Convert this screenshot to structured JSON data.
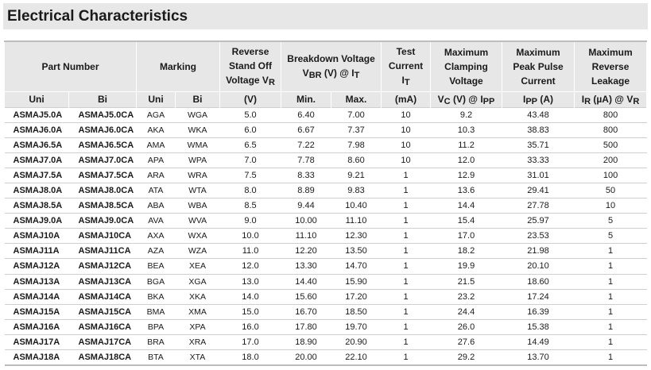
{
  "title": "Electrical Characteristics",
  "headers": {
    "part_number": "Part Number",
    "marking": "Marking",
    "reverse_standoff": [
      "Reverse",
      "Stand Off",
      "Voltage V"
    ],
    "reverse_standoff_sub": "R",
    "breakdown": [
      "Breakdown Voltage",
      "V",
      "BR",
      " (V) @ I",
      "T"
    ],
    "test_current": [
      "Test",
      "Current",
      "I"
    ],
    "test_current_sub": "T",
    "max_clamping": [
      "Maximum",
      "Clamping",
      "Voltage"
    ],
    "max_peak": [
      "Maximum",
      "Peak Pulse",
      "Current"
    ],
    "max_leakage": [
      "Maximum",
      "Reverse",
      "Leakage"
    ],
    "sub": {
      "uni": "Uni",
      "bi": "Bi",
      "marking_uni": "Uni",
      "marking_bi": "Bi",
      "vr_unit": "(V)",
      "min": "Min.",
      "max": "Max.",
      "it_unit": "(mA)",
      "vc": "V",
      "vc_sub": "C",
      "vc_rest": " (V) @ I",
      "vc_sub2": "PP",
      "ipp": "I",
      "ipp_sub": "PP",
      "ipp_rest": " (A)",
      "ir": "I",
      "ir_sub": "R",
      "ir_rest": " (µA) @ V",
      "ir_sub2": "R"
    }
  },
  "rows": [
    {
      "uni": "ASMAJ5.0A",
      "bi": "ASMAJ5.0CA",
      "mu": "AGA",
      "mb": "WGA",
      "vr": "5.0",
      "min": "6.40",
      "max": "7.00",
      "it": "10",
      "vc": "9.2",
      "ipp": "43.48",
      "ir": "800"
    },
    {
      "uni": "ASMAJ6.0A",
      "bi": "ASMAJ6.0CA",
      "mu": "AKA",
      "mb": "WKA",
      "vr": "6.0",
      "min": "6.67",
      "max": "7.37",
      "it": "10",
      "vc": "10.3",
      "ipp": "38.83",
      "ir": "800"
    },
    {
      "uni": "ASMAJ6.5A",
      "bi": "ASMAJ6.5CA",
      "mu": "AMA",
      "mb": "WMA",
      "vr": "6.5",
      "min": "7.22",
      "max": "7.98",
      "it": "10",
      "vc": "11.2",
      "ipp": "35.71",
      "ir": "500"
    },
    {
      "uni": "ASMAJ7.0A",
      "bi": "ASMAJ7.0CA",
      "mu": "APA",
      "mb": "WPA",
      "vr": "7.0",
      "min": "7.78",
      "max": "8.60",
      "it": "10",
      "vc": "12.0",
      "ipp": "33.33",
      "ir": "200"
    },
    {
      "uni": "ASMAJ7.5A",
      "bi": "ASMAJ7.5CA",
      "mu": "ARA",
      "mb": "WRA",
      "vr": "7.5",
      "min": "8.33",
      "max": "9.21",
      "it": "1",
      "vc": "12.9",
      "ipp": "31.01",
      "ir": "100"
    },
    {
      "uni": "ASMAJ8.0A",
      "bi": "ASMAJ8.0CA",
      "mu": "ATA",
      "mb": "WTA",
      "vr": "8.0",
      "min": "8.89",
      "max": "9.83",
      "it": "1",
      "vc": "13.6",
      "ipp": "29.41",
      "ir": "50"
    },
    {
      "uni": "ASMAJ8.5A",
      "bi": "ASMAJ8.5CA",
      "mu": "ABA",
      "mb": "WBA",
      "vr": "8.5",
      "min": "9.44",
      "max": "10.40",
      "it": "1",
      "vc": "14.4",
      "ipp": "27.78",
      "ir": "10"
    },
    {
      "uni": "ASMAJ9.0A",
      "bi": "ASMAJ9.0CA",
      "mu": "AVA",
      "mb": "WVA",
      "vr": "9.0",
      "min": "10.00",
      "max": "11.10",
      "it": "1",
      "vc": "15.4",
      "ipp": "25.97",
      "ir": "5"
    },
    {
      "uni": "ASMAJ10A",
      "bi": "ASMAJ10CA",
      "mu": "AXA",
      "mb": "WXA",
      "vr": "10.0",
      "min": "11.10",
      "max": "12.30",
      "it": "1",
      "vc": "17.0",
      "ipp": "23.53",
      "ir": "5"
    },
    {
      "uni": "ASMAJ11A",
      "bi": "ASMAJ11CA",
      "mu": "AZA",
      "mb": "WZA",
      "vr": "11.0",
      "min": "12.20",
      "max": "13.50",
      "it": "1",
      "vc": "18.2",
      "ipp": "21.98",
      "ir": "1"
    },
    {
      "uni": "ASMAJ12A",
      "bi": "ASMAJ12CA",
      "mu": "BEA",
      "mb": "XEA",
      "vr": "12.0",
      "min": "13.30",
      "max": "14.70",
      "it": "1",
      "vc": "19.9",
      "ipp": "20.10",
      "ir": "1"
    },
    {
      "uni": "ASMAJ13A",
      "bi": "ASMAJ13CA",
      "mu": "BGA",
      "mb": "XGA",
      "vr": "13.0",
      "min": "14.40",
      "max": "15.90",
      "it": "1",
      "vc": "21.5",
      "ipp": "18.60",
      "ir": "1"
    },
    {
      "uni": "ASMAJ14A",
      "bi": "ASMAJ14CA",
      "mu": "BKA",
      "mb": "XKA",
      "vr": "14.0",
      "min": "15.60",
      "max": "17.20",
      "it": "1",
      "vc": "23.2",
      "ipp": "17.24",
      "ir": "1"
    },
    {
      "uni": "ASMAJ15A",
      "bi": "ASMAJ15CA",
      "mu": "BMA",
      "mb": "XMA",
      "vr": "15.0",
      "min": "16.70",
      "max": "18.50",
      "it": "1",
      "vc": "24.4",
      "ipp": "16.39",
      "ir": "1"
    },
    {
      "uni": "ASMAJ16A",
      "bi": "ASMAJ16CA",
      "mu": "BPA",
      "mb": "XPA",
      "vr": "16.0",
      "min": "17.80",
      "max": "19.70",
      "it": "1",
      "vc": "26.0",
      "ipp": "15.38",
      "ir": "1"
    },
    {
      "uni": "ASMAJ17A",
      "bi": "ASMAJ17CA",
      "mu": "BRA",
      "mb": "XRA",
      "vr": "17.0",
      "min": "18.90",
      "max": "20.90",
      "it": "1",
      "vc": "27.6",
      "ipp": "14.49",
      "ir": "1"
    },
    {
      "uni": "ASMAJ18A",
      "bi": "ASMAJ18CA",
      "mu": "BTA",
      "mb": "XTA",
      "vr": "18.0",
      "min": "20.00",
      "max": "22.10",
      "it": "1",
      "vc": "29.2",
      "ipp": "13.70",
      "ir": "1"
    }
  ]
}
